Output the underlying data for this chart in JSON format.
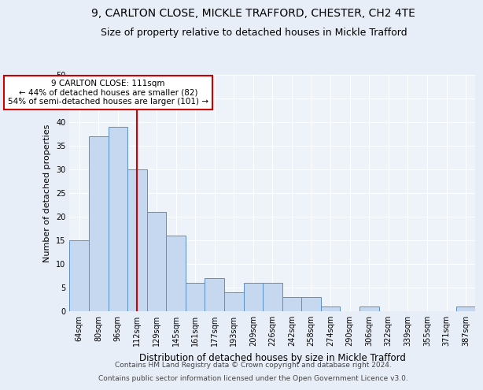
{
  "title1": "9, CARLTON CLOSE, MICKLE TRAFFORD, CHESTER, CH2 4TE",
  "title2": "Size of property relative to detached houses in Mickle Trafford",
  "xlabel": "Distribution of detached houses by size in Mickle Trafford",
  "ylabel": "Number of detached properties",
  "categories": [
    "64sqm",
    "80sqm",
    "96sqm",
    "112sqm",
    "129sqm",
    "145sqm",
    "161sqm",
    "177sqm",
    "193sqm",
    "209sqm",
    "226sqm",
    "242sqm",
    "258sqm",
    "274sqm",
    "290sqm",
    "306sqm",
    "322sqm",
    "339sqm",
    "355sqm",
    "371sqm",
    "387sqm"
  ],
  "values": [
    15,
    37,
    39,
    30,
    21,
    16,
    6,
    7,
    4,
    6,
    6,
    3,
    3,
    1,
    0,
    1,
    0,
    0,
    0,
    0,
    1
  ],
  "bar_color": "#c5d8f0",
  "bar_edge_color": "#5b8fc9",
  "vline_x": 3,
  "vline_color": "#cc0000",
  "annotation_title": "9 CARLTON CLOSE: 111sqm",
  "annotation_line1": "← 44% of detached houses are smaller (82)",
  "annotation_line2": "54% of semi-detached houses are larger (101) →",
  "annotation_box_color": "#ffffff",
  "annotation_box_edge": "#cc0000",
  "ylim": [
    0,
    50
  ],
  "yticks": [
    0,
    5,
    10,
    15,
    20,
    25,
    30,
    35,
    40,
    45,
    50
  ],
  "bg_color": "#e8eef7",
  "plot_bg": "#eef2f9",
  "footer1": "Contains HM Land Registry data © Crown copyright and database right 2024.",
  "footer2": "Contains public sector information licensed under the Open Government Licence v3.0.",
  "title1_fontsize": 10,
  "title2_fontsize": 9,
  "xlabel_fontsize": 8.5,
  "ylabel_fontsize": 8,
  "tick_fontsize": 7,
  "footer_fontsize": 6.5,
  "ann_fontsize": 7.5
}
